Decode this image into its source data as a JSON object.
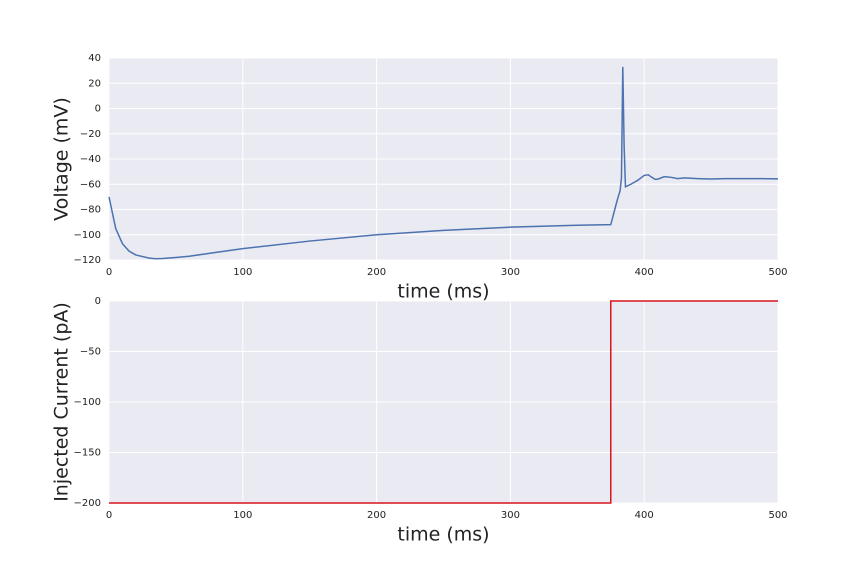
{
  "chart_data": [
    {
      "type": "line",
      "xlabel": "time (ms)",
      "ylabel": "Voltage (mV)",
      "x": [
        0,
        5,
        10,
        15,
        20,
        30,
        35,
        40,
        50,
        60,
        80,
        100,
        150,
        200,
        250,
        300,
        350,
        375,
        378,
        380,
        382,
        383,
        384,
        385,
        386,
        390,
        395,
        400,
        403,
        405,
        408,
        410,
        415,
        420,
        425,
        430,
        440,
        450,
        460,
        480,
        500
      ],
      "values": [
        -70,
        -95,
        -107,
        -113,
        -116,
        -118.5,
        -119,
        -118.8,
        -118,
        -117,
        -114,
        -111,
        -105,
        -100,
        -96.5,
        -94,
        -92.5,
        -92,
        -80,
        -72,
        -65,
        -55,
        33,
        -30,
        -62,
        -60,
        -57,
        -53,
        -52.5,
        -54,
        -56,
        -56,
        -54,
        -54.5,
        -55.5,
        -55,
        -55.5,
        -55.8,
        -55.5,
        -55.5,
        -55.7
      ],
      "color": "#4c72b0",
      "grid": true,
      "xlim": [
        0,
        500
      ],
      "xticks": [
        0,
        100,
        200,
        300,
        400,
        500
      ],
      "ylim": [
        -120,
        40
      ],
      "yticks": [
        {
          "value": -120,
          "label": "−120"
        },
        {
          "value": -100,
          "label": "−100"
        },
        {
          "value": -80,
          "label": "−80"
        },
        {
          "value": -60,
          "label": "−60"
        },
        {
          "value": -40,
          "label": "−40"
        },
        {
          "value": -20,
          "label": "−20"
        },
        0,
        20,
        40
      ]
    },
    {
      "type": "line",
      "xlabel": "time (ms)",
      "ylabel": "Injected Current (pA)",
      "x": [
        0,
        375,
        375,
        500
      ],
      "values": [
        -200,
        -200,
        0,
        0
      ],
      "color": "#d9141c",
      "grid": true,
      "xlim": [
        0,
        500
      ],
      "xticks": [
        0,
        100,
        200,
        300,
        400,
        500
      ],
      "ylim": [
        -200,
        0
      ],
      "yticks": [
        {
          "value": -200,
          "label": "−200"
        },
        {
          "value": -150,
          "label": "−150"
        },
        {
          "value": -100,
          "label": "−100"
        },
        {
          "value": -50,
          "label": "−50"
        },
        0
      ]
    }
  ]
}
